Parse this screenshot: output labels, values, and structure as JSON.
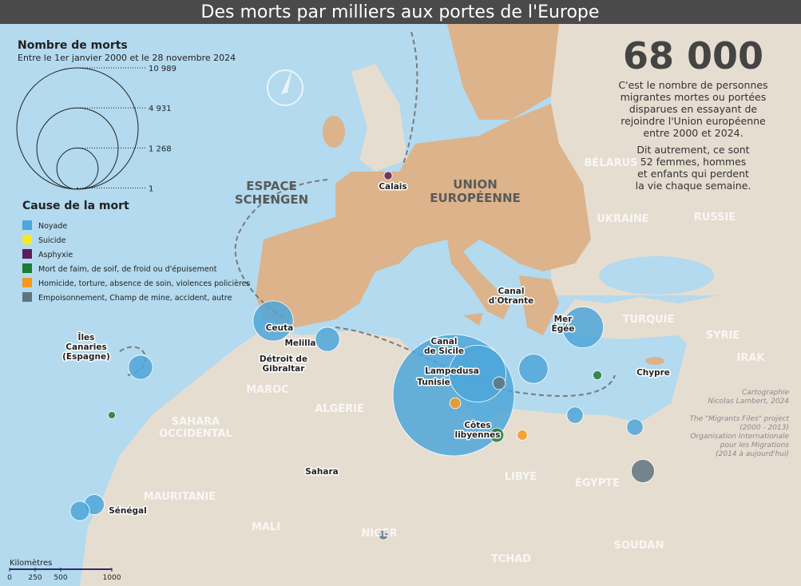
{
  "title": "Des morts par milliers aux portes de l'Europe",
  "legend": {
    "size_title": "Nombre de morts",
    "size_subtitle": "Entre le 1er janvier 2000 et le 28 novembre 2024",
    "size_ticks": [
      {
        "value": 10989,
        "label": "10 989"
      },
      {
        "value": 4931,
        "label": "4 931"
      },
      {
        "value": 1268,
        "label": "1 268"
      },
      1
    ],
    "cause_title": "Cause de la mort",
    "causes": [
      {
        "name": "Noyade",
        "color": "#4da6d8"
      },
      {
        "name": "Suicide",
        "color": "#f2e92a"
      },
      {
        "name": "Asphyxie",
        "color": "#5b1e5e"
      },
      {
        "name": "Mort de faim, de soif, de froid ou d'épuisement",
        "color": "#1e7a35"
      },
      {
        "name": "Homicide, torture, absence de soin, violences policières",
        "color": "#f39a1e"
      },
      {
        "name": "Empoisonnement, Champ de mine, accident, autre",
        "color": "#5f7480"
      }
    ]
  },
  "headline": {
    "number": "68 000",
    "text": [
      "C'est le nombre de personnes",
      "migrantes mortes ou portées",
      "disparues en essayant de",
      "rejoindre l'Union européenne",
      "entre 2000 et 2024."
    ],
    "text2": [
      "Dit autrement, ce sont",
      "52 femmes, hommes",
      "et enfants qui perdent",
      "la vie chaque semaine."
    ]
  },
  "regions": [
    {
      "lines": [
        "ESPACE",
        "SCHENGEN"
      ]
    },
    {
      "lines": [
        "UNION",
        "EUROPÉENNE"
      ]
    }
  ],
  "countries": [
    {
      "lines": [
        "BÉLARUS"
      ]
    },
    {
      "lines": [
        "UKRAINE"
      ]
    },
    {
      "lines": [
        "RUSSIE"
      ]
    },
    {
      "lines": [
        "TURQUIE"
      ]
    },
    {
      "lines": [
        "SYRIE"
      ]
    },
    {
      "lines": [
        "IRAK"
      ]
    },
    {
      "lines": [
        "MAROC"
      ]
    },
    {
      "lines": [
        "ALGÉRIE"
      ]
    },
    {
      "lines": [
        "SAHARA",
        "OCCIDENTAL"
      ]
    },
    {
      "lines": [
        "MAURITANIE"
      ]
    },
    {
      "lines": [
        "MALI"
      ]
    },
    {
      "lines": [
        "NIGER"
      ]
    },
    {
      "lines": [
        "TCHAD"
      ]
    },
    {
      "lines": [
        "LIBYE"
      ]
    },
    {
      "lines": [
        "ÉGYPTE"
      ]
    },
    {
      "lines": [
        "SOUDAN"
      ]
    }
  ],
  "places": [
    {
      "lines": [
        "Calais"
      ]
    },
    {
      "lines": [
        "Ceuta"
      ]
    },
    {
      "lines": [
        "Melilla"
      ]
    },
    {
      "lines": [
        "Détroit de",
        "Gibraltar"
      ]
    },
    {
      "lines": [
        "Îles",
        "Canaries",
        "(Espagne)"
      ]
    },
    {
      "lines": [
        "Canal",
        "de Sicile"
      ]
    },
    {
      "lines": [
        "Lampedusa"
      ]
    },
    {
      "lines": [
        "Tunisie"
      ]
    },
    {
      "lines": [
        "Côtes",
        "libyennes"
      ]
    },
    {
      "lines": [
        "Canal",
        "d'Otrante"
      ]
    },
    {
      "lines": [
        "Mer",
        "Égée"
      ]
    },
    {
      "lines": [
        "Chypre"
      ]
    },
    {
      "lines": [
        "Sahara"
      ]
    },
    {
      "lines": [
        "Sénégal"
      ]
    }
  ],
  "credits": [
    "Cartographie",
    "Nicolas Lambert, 2024",
    "",
    "The \"Migrants Files\" project",
    "(2000 - 2013)",
    "Organisation Internationale",
    "pour les Migrations",
    "(2014 à aujourd'hui)"
  ],
  "scale": {
    "title": "Kilomètres",
    "ticks": [
      0,
      250,
      500,
      1000
    ]
  },
  "circles": [
    {
      "value": 10989,
      "color": "#4da6d8"
    },
    {
      "value": 2400,
      "color": "#4da6d8"
    },
    {
      "value": 1250,
      "color": "#4da6d8"
    },
    {
      "value": 1200,
      "color": "#4da6d8"
    },
    {
      "value": 640,
      "color": "#4da6d8"
    },
    {
      "value": 440,
      "color": "#4da6d8"
    },
    {
      "value": 440,
      "color": "#4da6d8"
    },
    {
      "value": 300,
      "color": "#4da6d8"
    },
    {
      "value": 280,
      "color": "#4da6d8"
    },
    {
      "value": 400,
      "color": "#5f7480"
    },
    {
      "value": 200,
      "color": "#4da6d8"
    },
    {
      "value": 200,
      "color": "#4da6d8"
    },
    {
      "value": 150,
      "color": "#1e7a35"
    },
    {
      "value": 90,
      "color": "#f39a1e"
    },
    {
      "value": 120,
      "color": "#5f7480"
    },
    {
      "value": 60,
      "color": "#1e7a35"
    },
    {
      "value": 80,
      "color": "#f39a1e"
    },
    {
      "value": 70,
      "color": "#5f7480"
    },
    {
      "value": 50,
      "color": "#5b1e5e"
    },
    {
      "value": 40,
      "color": "#1e7a35"
    }
  ]
}
